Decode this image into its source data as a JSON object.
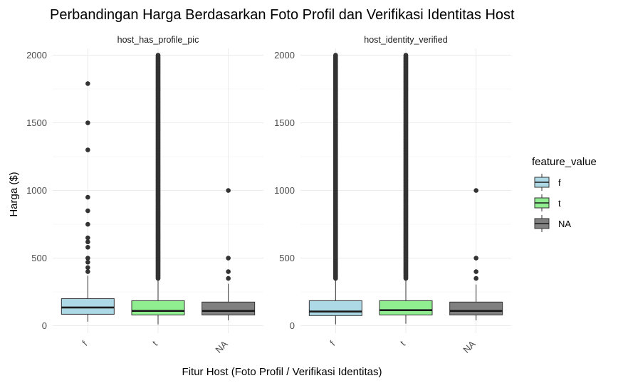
{
  "chart_data": {
    "type": "boxplot",
    "title": "Perbandingan Harga Berdasarkan Foto Profil dan Verifikasi Identitas Host",
    "xlabel": "Fitur Host (Foto Profil / Verifikasi Identitas)",
    "ylabel": "Harga ($)",
    "ylim": [
      -55,
      2050
    ],
    "yticks": [
      0,
      500,
      1000,
      1500,
      2000
    ],
    "categories": [
      "f",
      "t",
      "NA"
    ],
    "colors": {
      "f": "#add8e6",
      "t": "#90ee90",
      "NA": "#808080"
    },
    "legend": {
      "title": "feature_value",
      "position": "right",
      "entries": [
        "f",
        "t",
        "NA"
      ]
    },
    "grid": true,
    "panels": [
      {
        "strip": "host_has_profile_pic",
        "boxes": [
          {
            "category": "f",
            "q1": 85,
            "median": 135,
            "q3": 200,
            "whisker_low": 30,
            "whisker_high": 370,
            "outliers": [
              400,
              430,
              470,
              500,
              580,
              620,
              650,
              750,
              850,
              950,
              1300,
              1500,
              1790
            ]
          },
          {
            "category": "t",
            "q1": 80,
            "median": 110,
            "q3": 185,
            "whisker_low": 10,
            "whisker_high": 345,
            "outliers_dense_from": 350,
            "outliers_dense_to": 2000
          },
          {
            "category": "NA",
            "q1": 80,
            "median": 110,
            "q3": 175,
            "whisker_low": 40,
            "whisker_high": 310,
            "outliers": [
              350,
              400,
              500,
              1000
            ]
          }
        ]
      },
      {
        "strip": "host_identity_verified",
        "boxes": [
          {
            "category": "f",
            "q1": 75,
            "median": 105,
            "q3": 185,
            "whisker_low": 10,
            "whisker_high": 345,
            "outliers_dense_from": 350,
            "outliers_dense_to": 2000
          },
          {
            "category": "t",
            "q1": 80,
            "median": 115,
            "q3": 185,
            "whisker_low": 15,
            "whisker_high": 345,
            "outliers_dense_from": 350,
            "outliers_dense_to": 2000
          },
          {
            "category": "NA",
            "q1": 80,
            "median": 110,
            "q3": 175,
            "whisker_low": 40,
            "whisker_high": 305,
            "outliers": [
              350,
              400,
              500,
              1000
            ]
          }
        ]
      }
    ]
  }
}
